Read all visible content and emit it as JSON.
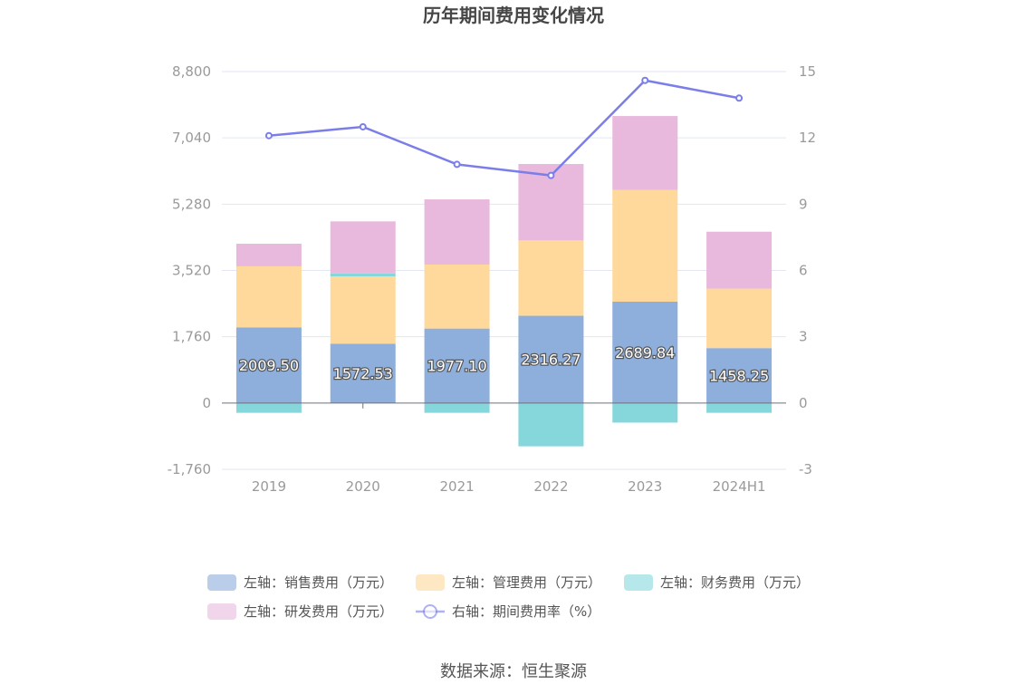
{
  "title": "历年期间费用变化情况",
  "source": "数据来源：恒生聚源",
  "colors": {
    "sales": "#8eaedb",
    "admin": "#fed99b",
    "finance": "#86d7dc",
    "rnd": "#e8b9dc",
    "rate_line": "#7b7ee8",
    "grid": "#e3e6f3",
    "axis": "#6e7079"
  },
  "legend": [
    {
      "key": "sales",
      "label": "左轴：销售费用（万元）"
    },
    {
      "key": "admin",
      "label": "左轴：管理费用（万元）"
    },
    {
      "key": "finance",
      "label": "左轴：财务费用（万元）"
    },
    {
      "key": "rnd",
      "label": "左轴：研发费用（万元）"
    },
    {
      "key": "rate_line",
      "label": "右轴：期间费用率（%）"
    }
  ],
  "chart_data": {
    "type": "bar",
    "stacked": true,
    "title": "历年期间费用变化情况",
    "categories": [
      "2019",
      "2020",
      "2021",
      "2022",
      "2023",
      "2024H1"
    ],
    "left_axis": {
      "min": -1760,
      "max": 8800,
      "ticks": [
        -1760,
        0,
        1760,
        3520,
        5280,
        7040,
        8800
      ],
      "tick_labels": [
        "-1,760",
        "0",
        "1,760",
        "3,520",
        "5,280",
        "7,040",
        "8,800"
      ]
    },
    "right_axis": {
      "min": -3,
      "max": 15,
      "ticks": [
        -3,
        0,
        3,
        6,
        9,
        12,
        15
      ],
      "tick_labels": [
        "-3",
        "0",
        "3",
        "6",
        "9",
        "12",
        "15"
      ]
    },
    "series": [
      {
        "name": "左轴：销售费用（万元）",
        "key": "sales",
        "axis": "left",
        "values": [
          2009.5,
          1572.53,
          1977.1,
          2316.27,
          2689.84,
          1458.25
        ],
        "labels": [
          "2009.50",
          "1572.53",
          "1977.10",
          "2316.27",
          "2689.84",
          "1458.25"
        ]
      },
      {
        "name": "左轴：管理费用（万元）",
        "key": "admin",
        "axis": "left",
        "values": [
          1620,
          1790,
          1700,
          2000,
          2970,
          1580
        ]
      },
      {
        "name": "左轴：财务费用（万元）",
        "key": "finance",
        "axis": "left",
        "values": [
          -260,
          80,
          -260,
          -1150,
          -520,
          -260
        ]
      },
      {
        "name": "左轴：研发费用（万元）",
        "key": "rnd",
        "axis": "left",
        "values": [
          600,
          1380,
          1730,
          2030,
          1960,
          1510
        ]
      },
      {
        "name": "右轴：期间费用率（%）",
        "key": "rate_line",
        "axis": "right",
        "type": "line",
        "values": [
          12.1,
          12.5,
          10.8,
          10.3,
          14.6,
          13.8
        ]
      }
    ]
  }
}
